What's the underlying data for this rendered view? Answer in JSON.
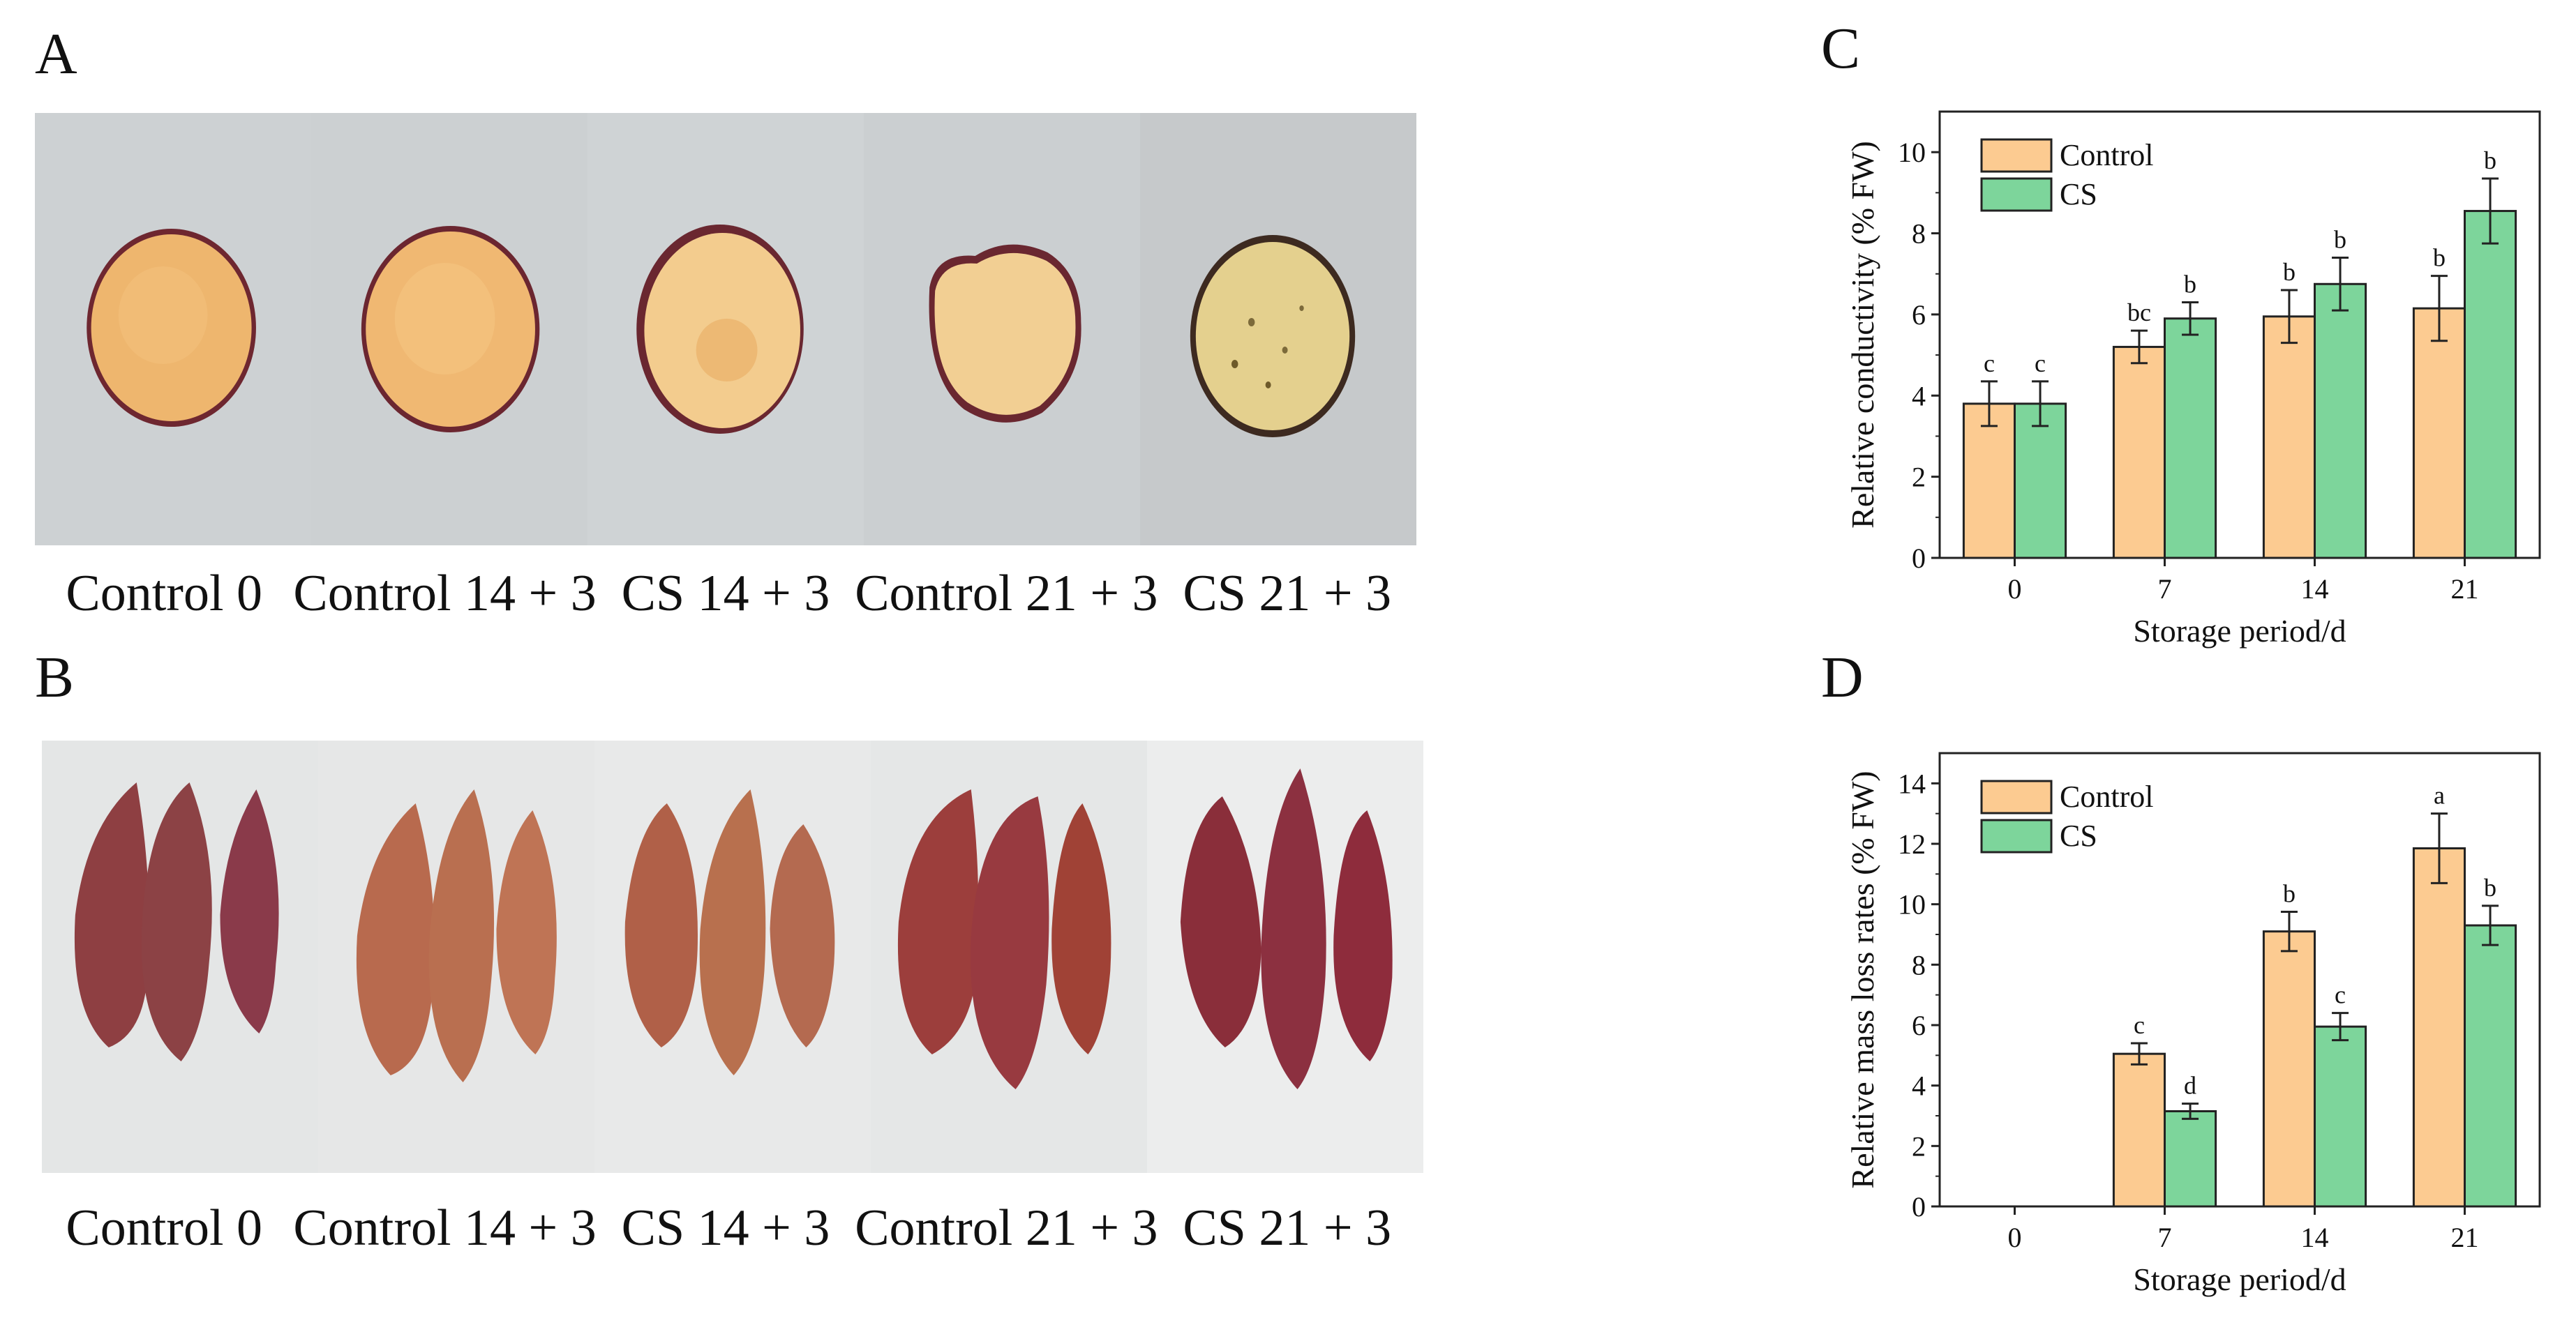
{
  "panels": {
    "a": {
      "letter": "A",
      "photos": [
        {
          "label": "Control 0",
          "kind": "fresh"
        },
        {
          "label": "Control 14 + 3",
          "kind": "fresh"
        },
        {
          "label": "CS 14 + 3",
          "kind": "pale"
        },
        {
          "label": "Control 21 + 3",
          "kind": "pale"
        },
        {
          "label": "CS 21 + 3",
          "kind": "decayed"
        }
      ]
    },
    "b": {
      "letter": "B",
      "photos": [
        {
          "label": "Control 0"
        },
        {
          "label": "Control 14 + 3"
        },
        {
          "label": "CS 14 + 3"
        },
        {
          "label": "Control 21 + 3"
        },
        {
          "label": "CS 21 + 3"
        }
      ]
    },
    "c": {
      "letter": "C"
    },
    "d": {
      "letter": "D"
    }
  },
  "colors": {
    "control": "#FCCB91",
    "cs": "#7DD59B",
    "axis": "#222222"
  },
  "chart_data": [
    {
      "type": "bar",
      "ylabel": "Relative conductivity (% FW)",
      "xlabel": "Storage period/d",
      "categories": [
        "0",
        "7",
        "14",
        "21"
      ],
      "ylim": [
        0,
        11
      ],
      "yticks": [
        0,
        2,
        4,
        6,
        8,
        10
      ],
      "legend": "top-left",
      "series": [
        {
          "name": "Control",
          "values": [
            3.8,
            5.2,
            5.95,
            6.15
          ],
          "errors": [
            0.55,
            0.4,
            0.65,
            0.8
          ],
          "labels": [
            "c",
            "bc",
            "b",
            "b"
          ]
        },
        {
          "name": "CS",
          "values": [
            3.8,
            5.9,
            6.75,
            8.55
          ],
          "errors": [
            0.55,
            0.4,
            0.65,
            0.8
          ],
          "labels": [
            "c",
            "b",
            "b",
            "b"
          ]
        }
      ]
    },
    {
      "type": "bar",
      "ylabel": "Relative mass loss rates (% FW)",
      "xlabel": "Storage period/d",
      "categories": [
        "0",
        "7",
        "14",
        "21"
      ],
      "ylim": [
        0,
        15
      ],
      "yticks": [
        0,
        2,
        4,
        6,
        8,
        10,
        12,
        14
      ],
      "legend": "top-left",
      "series": [
        {
          "name": "Control",
          "values": [
            null,
            5.05,
            9.1,
            11.85
          ],
          "errors": [
            null,
            0.35,
            0.65,
            1.15
          ],
          "labels": [
            "",
            "c",
            "b",
            "a"
          ]
        },
        {
          "name": "CS",
          "values": [
            null,
            3.15,
            5.95,
            9.3
          ],
          "errors": [
            null,
            0.25,
            0.45,
            0.65
          ],
          "labels": [
            "",
            "d",
            "c",
            "b"
          ]
        }
      ]
    }
  ]
}
